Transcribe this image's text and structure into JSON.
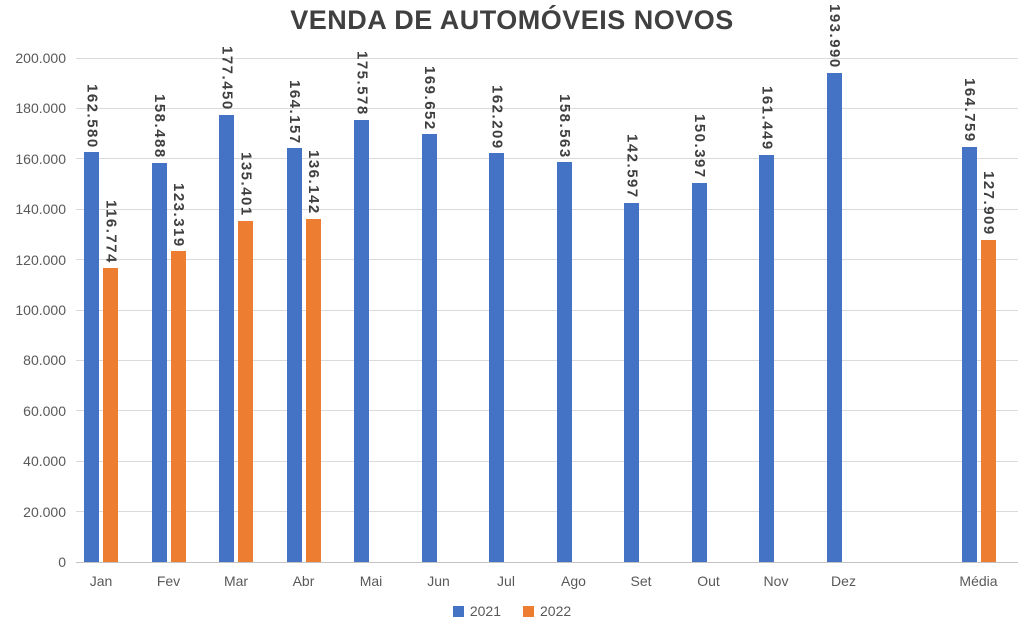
{
  "chart_data": {
    "type": "bar",
    "title": "VENDA DE AUTOMÓVEIS NOVOS",
    "categories": [
      "Jan",
      "Fev",
      "Mar",
      "Abr",
      "Mai",
      "Jun",
      "Jul",
      "Ago",
      "Set",
      "Out",
      "Nov",
      "Dez",
      "",
      "Média"
    ],
    "series": [
      {
        "name": "2021",
        "color": "#4472C4",
        "values": [
          162580,
          158488,
          177450,
          164157,
          175578,
          169652,
          162209,
          158563,
          142597,
          150397,
          161449,
          193990,
          null,
          164759
        ],
        "labels": [
          "162.580",
          "158.488",
          "177.450",
          "164.157",
          "175.578",
          "169.652",
          "162.209",
          "158.563",
          "142.597",
          "150.397",
          "161.449",
          "193.990",
          null,
          "164.759"
        ]
      },
      {
        "name": "2022",
        "color": "#ED7D31",
        "values": [
          116774,
          123319,
          135401,
          136142,
          null,
          null,
          null,
          null,
          null,
          null,
          null,
          null,
          null,
          127909
        ],
        "labels": [
          "116.774",
          "123.319",
          "135.401",
          "136.142",
          null,
          null,
          null,
          null,
          null,
          null,
          null,
          null,
          null,
          "127.909"
        ]
      }
    ],
    "ylim": [
      0,
      200000
    ],
    "ytick_step": 20000,
    "ytick_labels": [
      "0",
      "20.000",
      "40.000",
      "60.000",
      "80.000",
      "100.000",
      "120.000",
      "140.000",
      "160.000",
      "180.000",
      "200.000"
    ],
    "grid": true,
    "legend": {
      "position": "bottom",
      "entries": [
        {
          "label": "2021",
          "color": "#4472C4"
        },
        {
          "label": "2022",
          "color": "#ED7D31"
        }
      ]
    }
  },
  "colors": {
    "title_text": "#404040",
    "axis_text": "#595959",
    "value_label_text": "#3F3F3F",
    "gridline": "#DADADA",
    "axis_line": "#C3C3C3",
    "background": "#FFFFFF"
  }
}
